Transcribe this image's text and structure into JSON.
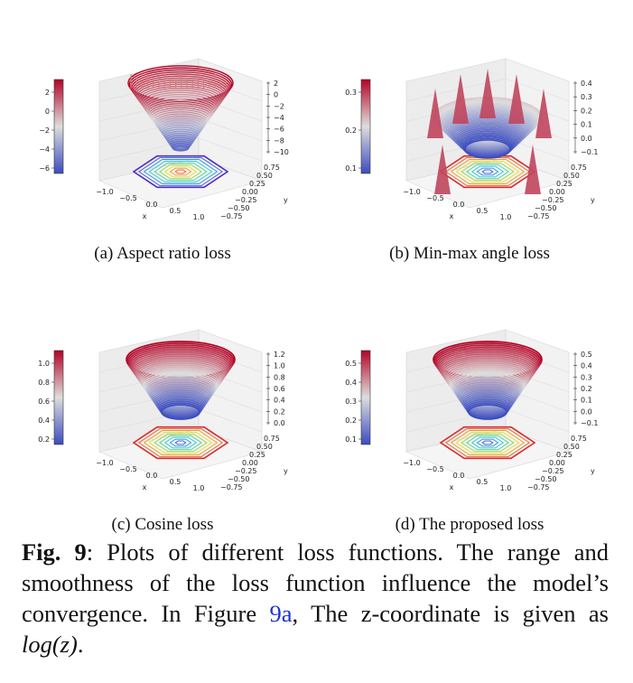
{
  "panels": [
    {
      "subcaption": "(a) Aspect ratio loss",
      "cbar_ticks": [
        "2",
        "0",
        "−2",
        "−4",
        "−6"
      ],
      "z_ticks": [
        "2",
        "0",
        "−2",
        "−4",
        "−6",
        "−8",
        "−10"
      ],
      "x_ticks": [
        "−1.0",
        "−0.5",
        "0.0",
        "0.5",
        "1.0"
      ],
      "y_ticks": [
        "0.75",
        "0.50",
        "0.25",
        "0.00",
        "−0.25",
        "−0.50",
        "−0.75"
      ],
      "x_label": "x",
      "y_label": "y",
      "shape": "funnel"
    },
    {
      "subcaption": "(b) Min-max angle loss",
      "cbar_ticks": [
        "0.3",
        "0.2",
        "0.1"
      ],
      "z_ticks": [
        "0.4",
        "0.3",
        "0.2",
        "0.1",
        "0.0",
        "−0.1"
      ],
      "x_ticks": [
        "−1.0",
        "−0.5",
        "0.0",
        "0.5",
        "1.0"
      ],
      "y_ticks": [
        "0.75",
        "0.50",
        "0.25",
        "0.00",
        "−0.25",
        "−0.50",
        "−0.75"
      ],
      "x_label": "x",
      "y_label": "y",
      "shape": "spiky"
    },
    {
      "subcaption": "(c) Cosine loss",
      "cbar_ticks": [
        "1.0",
        "0.8",
        "0.6",
        "0.4",
        "0.2"
      ],
      "z_ticks": [
        "1.2",
        "1.0",
        "0.8",
        "0.6",
        "0.4",
        "0.2",
        "0.0"
      ],
      "x_ticks": [
        "−1.0",
        "−0.5",
        "0.0",
        "0.5",
        "1.0"
      ],
      "y_ticks": [
        "0.75",
        "0.50",
        "0.25",
        "0.00",
        "−0.25",
        "−0.50",
        "−0.75"
      ],
      "x_label": "x",
      "y_label": "y",
      "shape": "bowl"
    },
    {
      "subcaption": "(d) The proposed loss",
      "cbar_ticks": [
        "0.5",
        "0.4",
        "0.3",
        "0.2",
        "0.1"
      ],
      "z_ticks": [
        "0.5",
        "0.4",
        "0.3",
        "0.2",
        "0.1",
        "0.0",
        "−0.1"
      ],
      "x_ticks": [
        "−1.0",
        "−0.5",
        "0.0",
        "0.5",
        "1.0"
      ],
      "y_ticks": [
        "0.75",
        "0.50",
        "0.25",
        "0.00",
        "−0.25",
        "−0.50",
        "−0.75"
      ],
      "x_label": "x",
      "y_label": "y",
      "shape": "bowl"
    }
  ],
  "caption": {
    "label": "Fig. 9",
    "text_1": ": Plots of different loss functions. The range and smoothness of the loss function influence the model’s convergence. In Figure ",
    "ref": "9a",
    "text_2": ", The z-coordinate is given as ",
    "math": "log(z)",
    "text_3": "."
  },
  "colors": {
    "link": "#2233cc",
    "surface_high": "#d13b2f",
    "surface_low": "#3b4cc0"
  }
}
